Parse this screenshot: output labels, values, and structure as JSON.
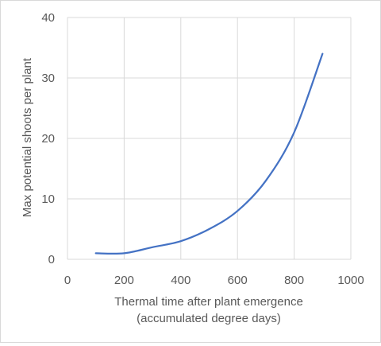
{
  "chart_data": {
    "type": "line",
    "title": "",
    "xlabel": [
      "Thermal time after plant emergence",
      "(accumulated degree days)"
    ],
    "ylabel": "Max potential shoots per plant",
    "xlim": [
      0,
      1000
    ],
    "ylim": [
      0,
      40
    ],
    "xticks": [
      0,
      200,
      400,
      600,
      800,
      1000
    ],
    "yticks": [
      0,
      10,
      20,
      30,
      40
    ],
    "xtick_labels": [
      "0",
      "200",
      "400",
      "600",
      "800",
      "1000"
    ],
    "ytick_labels": [
      "0",
      "10",
      "20",
      "30",
      "40"
    ],
    "grid": true,
    "legend": "none",
    "series": [
      {
        "color": "#4472c4",
        "x": [
          100,
          200,
          300,
          400,
          500,
          600,
          700,
          800,
          900
        ],
        "y": [
          1,
          1,
          2,
          3,
          5,
          8,
          13,
          21,
          34
        ]
      }
    ]
  }
}
